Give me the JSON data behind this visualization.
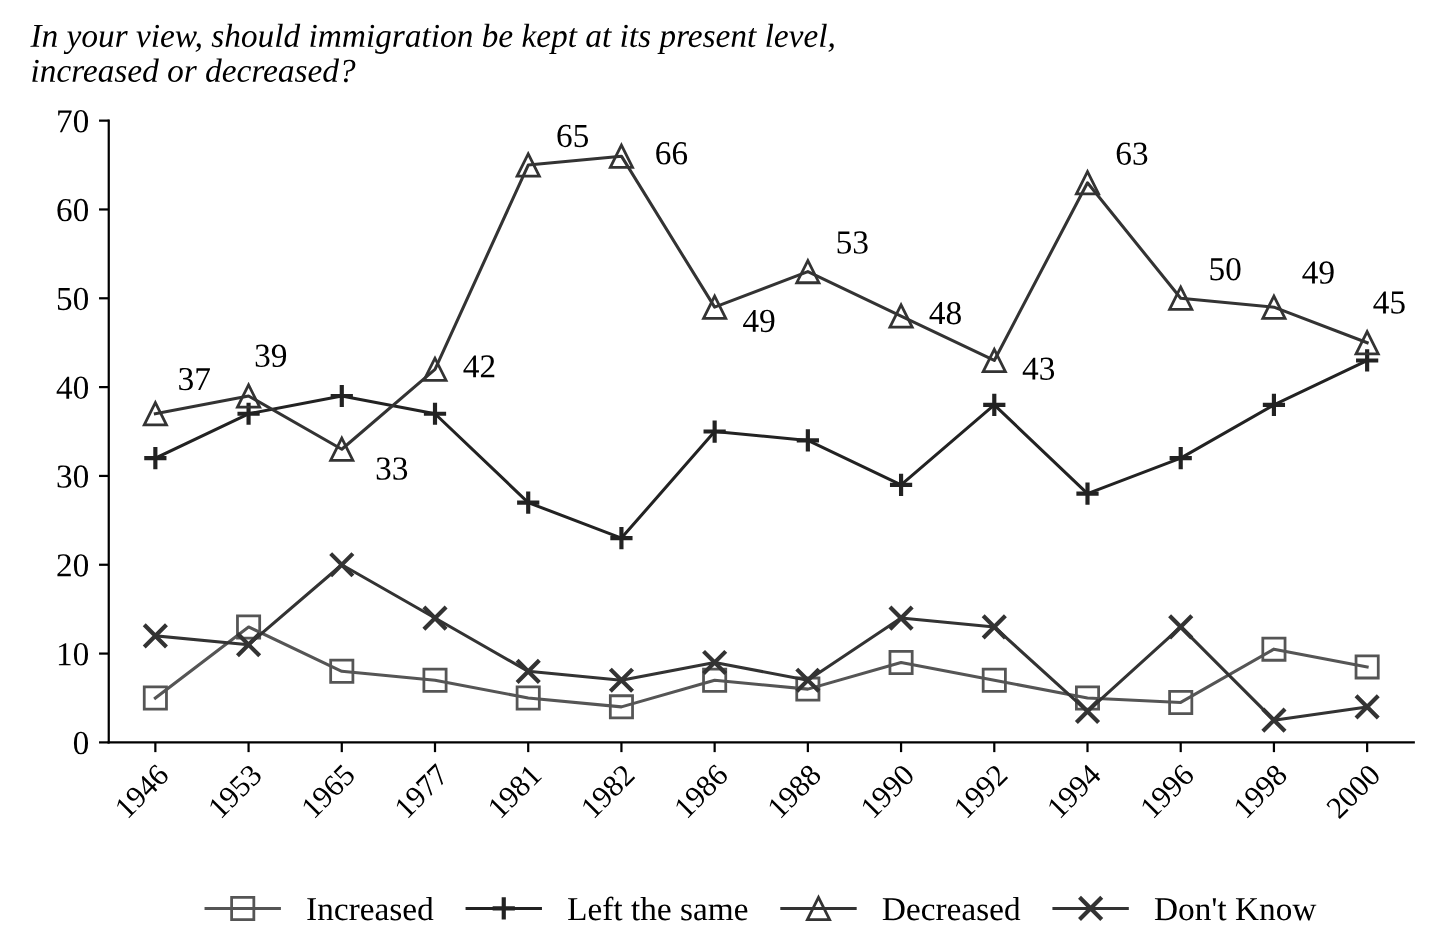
{
  "chart_data": {
    "type": "line",
    "title": "In your view, should immigration be kept at its present level,\nincreased or decreased?",
    "categories": [
      "1946",
      "1953",
      "1965",
      "1977",
      "1981",
      "1982",
      "1986",
      "1988",
      "1990",
      "1992",
      "1994",
      "1996",
      "1998",
      "2000"
    ],
    "series": [
      {
        "name": "Increased",
        "color": "#555555",
        "marker": "square",
        "values": [
          5,
          13,
          8,
          7,
          5,
          4,
          7,
          6,
          9,
          7,
          5,
          4.5,
          10.5,
          8.5
        ]
      },
      {
        "name": "Left the same",
        "color": "#222222",
        "marker": "cross",
        "values": [
          32,
          37,
          39,
          37,
          27,
          23,
          35,
          34,
          29,
          38,
          28,
          32,
          38,
          43
        ]
      },
      {
        "name": "Decreased",
        "color": "#333333",
        "marker": "triangle",
        "values": [
          37,
          39,
          33,
          42,
          65,
          66,
          49,
          53,
          48,
          43,
          63,
          50,
          49,
          45
        ],
        "value_labels": [
          "37",
          "39",
          "33",
          "42",
          "65",
          "66",
          "49",
          "53",
          "48",
          "43",
          "63",
          "50",
          "49",
          "45"
        ]
      },
      {
        "name": "Don't Know",
        "color": "#333333",
        "marker": "cross",
        "values": [
          12,
          11,
          20,
          14,
          8,
          7,
          9,
          7,
          14,
          13,
          3.5,
          13,
          2.5,
          4
        ]
      }
    ],
    "ylim": [
      0,
      70
    ],
    "yticks": [
      0,
      10,
      20,
      30,
      40,
      50,
      60,
      70
    ],
    "grid": false,
    "legend": "bottom"
  }
}
